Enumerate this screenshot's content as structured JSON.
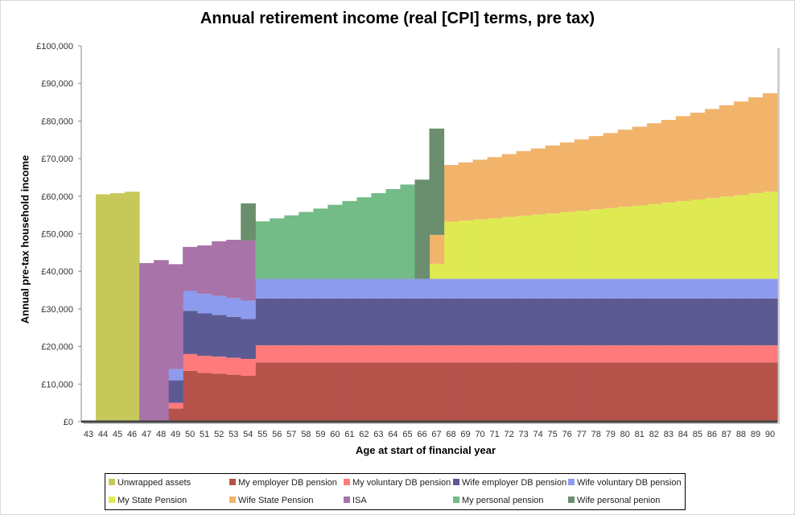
{
  "chart_data": {
    "type": "area",
    "title": "Annual retirement income (real [CPI] terms, pre tax)",
    "xlabel": "Age at start of financial year",
    "ylabel": "Annual pre-tax household income",
    "x": [
      43,
      44,
      45,
      46,
      47,
      48,
      49,
      50,
      51,
      52,
      53,
      54,
      55,
      56,
      57,
      58,
      59,
      60,
      61,
      62,
      63,
      64,
      65,
      66,
      67,
      68,
      69,
      70,
      71,
      72,
      73,
      74,
      75,
      76,
      77,
      78,
      79,
      80,
      81,
      82,
      83,
      84,
      85,
      86,
      87,
      88,
      89,
      90
    ],
    "ylim": [
      0,
      100000
    ],
    "yticks": [
      "£0",
      "£10,000",
      "£20,000",
      "£30,000",
      "£40,000",
      "£50,000",
      "£60,000",
      "£70,000",
      "£80,000",
      "£90,000",
      "£100,000"
    ],
    "stacked": true,
    "grid": false,
    "legend_position": "bottom",
    "series": [
      {
        "name": "Unwrapped assets",
        "color": "#c6c95a",
        "values": [
          0,
          60500,
          60800,
          61200,
          0,
          0,
          0,
          0,
          0,
          0,
          0,
          0,
          0,
          0,
          0,
          0,
          0,
          0,
          0,
          0,
          0,
          0,
          0,
          0,
          0,
          0,
          0,
          0,
          0,
          0,
          0,
          0,
          0,
          0,
          0,
          0,
          0,
          0,
          0,
          0,
          0,
          0,
          0,
          0,
          0,
          0,
          0,
          0
        ]
      },
      {
        "name": "My employer DB pension",
        "color": "#b5534b",
        "values": [
          0,
          0,
          0,
          0,
          0,
          0,
          3500,
          13500,
          13000,
          12800,
          12500,
          12200,
          15800,
          15800,
          15800,
          15800,
          15800,
          15800,
          15800,
          15800,
          15800,
          15800,
          15800,
          15800,
          15800,
          15800,
          15800,
          15800,
          15800,
          15800,
          15800,
          15800,
          15800,
          15800,
          15800,
          15800,
          15800,
          15800,
          15800,
          15800,
          15800,
          15800,
          15800,
          15800,
          15800,
          15800,
          15800,
          15800
        ]
      },
      {
        "name": "My voluntary DB pension",
        "color": "#ff7b7b",
        "values": [
          0,
          0,
          0,
          0,
          0,
          0,
          1500,
          4500,
          4500,
          4500,
          4500,
          4500,
          4500,
          4500,
          4500,
          4500,
          4500,
          4500,
          4500,
          4500,
          4500,
          4500,
          4500,
          4500,
          4500,
          4500,
          4500,
          4500,
          4500,
          4500,
          4500,
          4500,
          4500,
          4500,
          4500,
          4500,
          4500,
          4500,
          4500,
          4500,
          4500,
          4500,
          4500,
          4500,
          4500,
          4500,
          4500,
          4500
        ]
      },
      {
        "name": "Wife employer DB pension",
        "color": "#5c5a92",
        "values": [
          0,
          0,
          0,
          0,
          0,
          0,
          6000,
          11500,
          11300,
          11100,
          10900,
          10600,
          12500,
          12500,
          12500,
          12500,
          12500,
          12500,
          12500,
          12500,
          12500,
          12500,
          12500,
          12500,
          12500,
          12500,
          12500,
          12500,
          12500,
          12500,
          12500,
          12500,
          12500,
          12500,
          12500,
          12500,
          12500,
          12500,
          12500,
          12500,
          12500,
          12500,
          12500,
          12500,
          12500,
          12500,
          12500,
          12500
        ]
      },
      {
        "name": "Wife voluntary DB pension",
        "color": "#8c9bed",
        "values": [
          0,
          0,
          0,
          0,
          0,
          0,
          3000,
          5300,
          5200,
          5100,
          5000,
          4900,
          5200,
          5200,
          5200,
          5200,
          5200,
          5200,
          5200,
          5200,
          5200,
          5200,
          5200,
          5200,
          5200,
          5200,
          5200,
          5200,
          5200,
          5200,
          5200,
          5200,
          5200,
          5200,
          5200,
          5200,
          5200,
          5200,
          5200,
          5200,
          5200,
          5200,
          5200,
          5200,
          5200,
          5200,
          5200,
          5200
        ]
      },
      {
        "name": "My State Pension",
        "color": "#dfea52",
        "values": [
          0,
          0,
          0,
          0,
          0,
          0,
          0,
          0,
          0,
          0,
          0,
          0,
          0,
          0,
          0,
          0,
          0,
          0,
          0,
          0,
          0,
          0,
          0,
          0,
          4000,
          15200,
          15500,
          15800,
          16100,
          16500,
          16800,
          17100,
          17400,
          17800,
          18100,
          18500,
          18800,
          19200,
          19500,
          19900,
          20300,
          20700,
          21100,
          21500,
          21900,
          22300,
          22800,
          23200
        ]
      },
      {
        "name": "Wife State Pension",
        "color": "#f2b46b",
        "values": [
          0,
          0,
          0,
          0,
          0,
          0,
          0,
          0,
          0,
          0,
          0,
          0,
          0,
          0,
          0,
          0,
          0,
          0,
          0,
          0,
          0,
          0,
          0,
          0,
          7700,
          15100,
          15500,
          15900,
          16300,
          16700,
          17200,
          17600,
          18100,
          18500,
          19000,
          19500,
          20000,
          20500,
          21000,
          21500,
          22000,
          22600,
          23100,
          23700,
          24300,
          24900,
          25500,
          26200
        ]
      },
      {
        "name": "ISA",
        "color": "#a873a9",
        "values": [
          0,
          0,
          0,
          0,
          42200,
          43000,
          27900,
          11700,
          12900,
          14500,
          15500,
          16000,
          0,
          0,
          0,
          0,
          0,
          0,
          0,
          0,
          0,
          0,
          0,
          0,
          0,
          0,
          0,
          0,
          0,
          0,
          0,
          0,
          0,
          0,
          0,
          0,
          0,
          0,
          0,
          0,
          0,
          0,
          0,
          0,
          0,
          0,
          0,
          0
        ]
      },
      {
        "name": "My personal pension",
        "color": "#73bb87",
        "values": [
          0,
          0,
          0,
          0,
          0,
          0,
          0,
          0,
          0,
          0,
          0,
          0,
          15300,
          16100,
          16900,
          17800,
          18700,
          19700,
          20700,
          21700,
          22800,
          23900,
          25100,
          0,
          0,
          0,
          0,
          0,
          0,
          0,
          0,
          0,
          0,
          0,
          0,
          0,
          0,
          0,
          0,
          0,
          0,
          0,
          0,
          0,
          0,
          0,
          0,
          0
        ]
      },
      {
        "name": "Wife personal penion",
        "color": "#6b8e6f",
        "values": [
          0,
          0,
          0,
          0,
          0,
          0,
          0,
          0,
          0,
          0,
          0,
          9900,
          0,
          0,
          0,
          0,
          0,
          0,
          0,
          0,
          0,
          0,
          0,
          26400,
          28300,
          0,
          0,
          0,
          0,
          0,
          0,
          0,
          0,
          0,
          0,
          0,
          0,
          0,
          0,
          0,
          0,
          0,
          0,
          0,
          0,
          0,
          0,
          0
        ]
      }
    ]
  },
  "legend_rows": [
    [
      "Unwrapped assets",
      "My employer DB pension",
      "My voluntary DB pension",
      "Wife employer DB pension",
      "Wife voluntary DB pension"
    ],
    [
      "My State Pension",
      "Wife State Pension",
      "ISA",
      "My personal pension",
      "Wife personal penion"
    ]
  ]
}
